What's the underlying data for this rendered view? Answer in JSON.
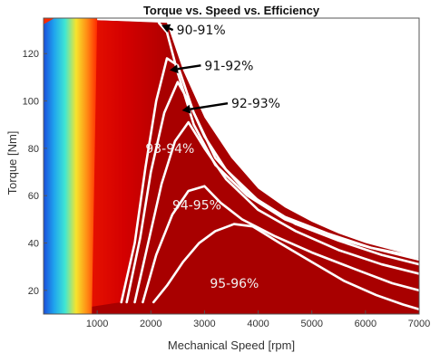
{
  "chart_data": {
    "type": "heatmap",
    "title": "Torque vs. Speed vs. Efficiency",
    "xlabel": "Mechanical Speed [rpm]",
    "ylabel": "Torque [Nm]",
    "xlim": [
      0,
      7000
    ],
    "ylim": [
      10,
      135
    ],
    "x_ticks": [
      1000,
      2000,
      3000,
      4000,
      5000,
      6000,
      7000
    ],
    "y_ticks": [
      20,
      40,
      60,
      80,
      100,
      120
    ],
    "grid": false,
    "colors": {
      "low": "#1a3fd6",
      "mid": "#f7e42c",
      "high": "#a80000",
      "contour": "#ffffff",
      "arrow": "#000000"
    },
    "operating_envelope": {
      "speed_rpm": [
        2300,
        2600,
        3000,
        3500,
        4000,
        4500,
        5000,
        5500,
        6000,
        6500,
        7000
      ],
      "max_torque_nm": [
        133,
        113,
        93,
        76,
        63,
        55,
        49,
        44,
        40,
        37,
        34
      ]
    },
    "contours": [
      {
        "label": "90-91%",
        "speed_rpm": [
          2150,
          2300,
          2500,
          2800,
          3200,
          3800,
          4500,
          5300,
          6100,
          7000
        ],
        "torque_nm": [
          133,
          129,
          112,
          90,
          73,
          60,
          50,
          43,
          38,
          34
        ]
      },
      {
        "label": "91-92%",
        "speed_rpm": [
          1450,
          1700,
          1900,
          2100,
          2300,
          2500,
          2800,
          3200,
          3800,
          4500,
          5300,
          6100,
          7000
        ],
        "torque_nm": [
          15,
          40,
          72,
          100,
          118,
          115,
          95,
          76,
          61,
          51,
          44,
          38,
          33
        ]
      },
      {
        "label": "92-93%",
        "speed_rpm": [
          1550,
          1800,
          2000,
          2250,
          2500,
          2700,
          3000,
          3400,
          4000,
          4700,
          5500,
          6300,
          7000
        ],
        "torque_nm": [
          15,
          42,
          70,
          95,
          108,
          100,
          85,
          71,
          58,
          48,
          41,
          35,
          31
        ]
      },
      {
        "label": "93-94%",
        "speed_rpm": [
          1700,
          1950,
          2200,
          2450,
          2700,
          3000,
          3400,
          4000,
          4700,
          5500,
          6300,
          7000
        ],
        "torque_nm": [
          15,
          40,
          65,
          83,
          91,
          80,
          67,
          54,
          45,
          37,
          31,
          27
        ]
      },
      {
        "label": "94-95%",
        "speed_rpm": [
          1850,
          2100,
          2400,
          2700,
          3000,
          3300,
          3700,
          4300,
          5000,
          5800,
          6500,
          7000
        ],
        "torque_nm": [
          15,
          35,
          52,
          62,
          64,
          57,
          50,
          43,
          36,
          29,
          23,
          20
        ]
      },
      {
        "label": "95-96%",
        "speed_rpm": [
          2050,
          2300,
          2600,
          2900,
          3200,
          3550,
          3900,
          4400,
          5000,
          5600,
          6200,
          6700,
          7000
        ],
        "torque_nm": [
          15,
          22,
          32,
          40,
          45,
          48,
          47,
          40,
          32,
          24,
          18,
          14,
          12
        ]
      }
    ],
    "annotations": [
      {
        "text": "90-91%",
        "speed_rpm": 2480,
        "torque_nm": 130,
        "arrow_to": [
          2200,
          132
        ]
      },
      {
        "text": "91-92%",
        "speed_rpm": 3000,
        "torque_nm": 115,
        "arrow_to": [
          2350,
          113
        ]
      },
      {
        "text": "92-93%",
        "speed_rpm": 3500,
        "torque_nm": 99,
        "arrow_to": [
          2580,
          96
        ]
      },
      {
        "text": "93-94%",
        "speed_rpm": 1900,
        "torque_nm": 80,
        "arrow_to": null
      },
      {
        "text": "94-95%",
        "speed_rpm": 2400,
        "torque_nm": 56,
        "arrow_to": null
      },
      {
        "text": "95-96%",
        "speed_rpm": 3100,
        "torque_nm": 23,
        "arrow_to": null
      }
    ]
  }
}
